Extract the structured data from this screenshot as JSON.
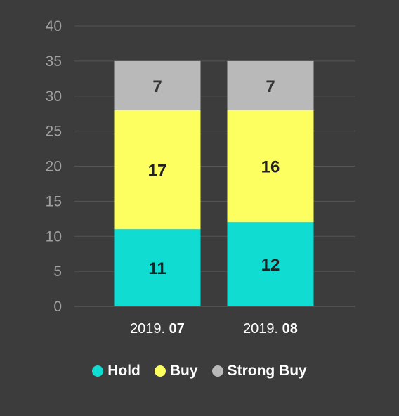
{
  "chart_data": {
    "type": "bar",
    "stacked": true,
    "categories": [
      {
        "year": "2019.",
        "month": "07"
      },
      {
        "year": "2019.",
        "month": "08"
      }
    ],
    "series": [
      {
        "name": "Hold",
        "color": "#10dcd2",
        "values": [
          11,
          12
        ],
        "labels": [
          "11",
          "12"
        ],
        "label_color": "#222222"
      },
      {
        "name": "Buy",
        "color": "#fdff60",
        "values": [
          17,
          16
        ],
        "labels": [
          "17",
          "16"
        ],
        "label_color": "#222222"
      },
      {
        "name": "Strong Buy",
        "color": "#b9b9b9",
        "values": [
          7,
          7
        ],
        "labels": [
          "7",
          "7"
        ],
        "label_color": "#333333"
      }
    ],
    "ylim": [
      0,
      40
    ],
    "yticks": [
      "0",
      "5",
      "10",
      "15",
      "20",
      "25",
      "30",
      "35",
      "40"
    ],
    "grid": true,
    "legend_position": "bottom",
    "background": "#3c3c3c"
  }
}
